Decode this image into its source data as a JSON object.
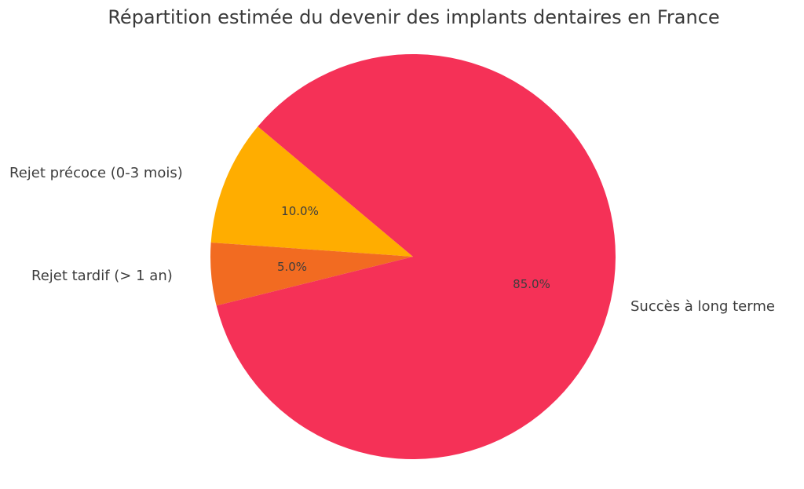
{
  "chart_data": {
    "type": "pie",
    "title": "Répartition estimée du devenir des implants dentaires en France",
    "categories": [
      "Rejet précoce (0-3 mois)",
      "Rejet tardif (> 1 an)",
      "Succès à long terme"
    ],
    "values": [
      10.0,
      5.0,
      85.0
    ],
    "value_labels": [
      "10.0%",
      "5.0%",
      "85.0%"
    ],
    "colors": [
      "#ffad00",
      "#f26b21",
      "#f53157"
    ],
    "start_angle": 140,
    "legend": "none"
  }
}
